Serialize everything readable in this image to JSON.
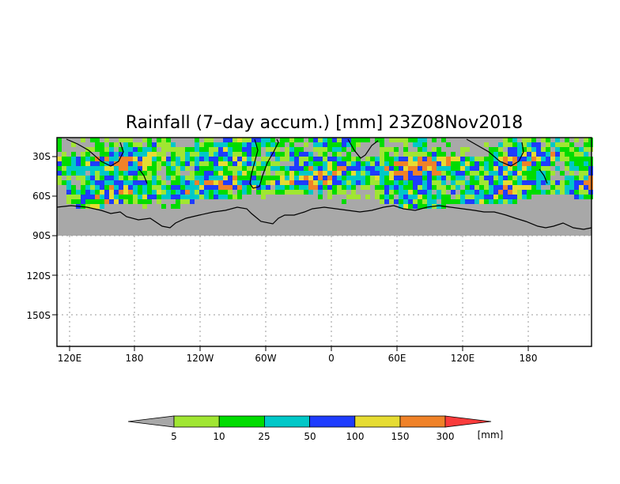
{
  "map": {
    "title": "Rainfall (7–day accum.) [mm] 23Z08Nov2018",
    "lat_labels": [
      "30S",
      "60S",
      "90S",
      "120S",
      "150S"
    ],
    "lon_labels": [
      "120E",
      "180",
      "120W",
      "60W",
      "0",
      "60E",
      "120E",
      "180"
    ],
    "background_fill": "#a8a8a8",
    "coastline_color": "#000000"
  },
  "legend": {
    "unit": "[mm]",
    "thresholds": [
      "5",
      "10",
      "25",
      "50",
      "100",
      "150",
      "300"
    ],
    "colors": [
      "#a8a8a8",
      "#a0e632",
      "#00dc00",
      "#00c8c8",
      "#1e3cff",
      "#e6dc32",
      "#f08228",
      "#fa3c3c"
    ]
  }
}
